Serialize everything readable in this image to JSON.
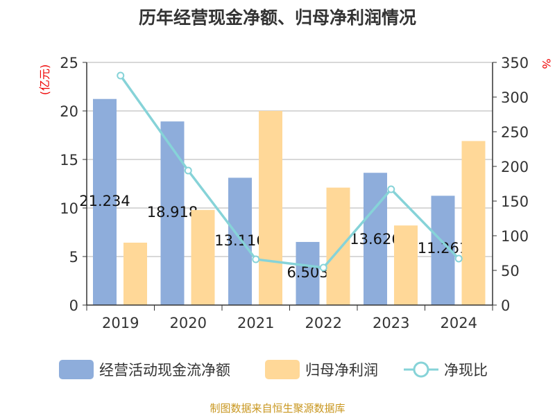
{
  "title": "历年经营现金净额、归母净利润情况",
  "source": "制图数据来自恒生聚源数据库",
  "chart_data": {
    "type": "bar",
    "title": "历年经营现金净额、归母净利润情况",
    "categories": [
      "2019",
      "2020",
      "2021",
      "2022",
      "2023",
      "2024"
    ],
    "ylabel": "(亿元)",
    "y2label": "%",
    "ylim": [
      0,
      25
    ],
    "y2lim": [
      0,
      350
    ],
    "yticks": [
      "0",
      "5",
      "10",
      "15",
      "20",
      "25"
    ],
    "y2ticks": [
      "0",
      "50",
      "100",
      "150",
      "200",
      "250",
      "300",
      "350"
    ],
    "grid": true,
    "legend": "bottom",
    "series": [
      {
        "name": "经营活动现金流净额",
        "type": "bar",
        "color": "#8eaddb",
        "values": [
          21.234,
          18.918,
          13.116,
          6.503,
          13.626,
          11.261
        ],
        "labels": [
          "21.234",
          "18.918",
          "13.116",
          "6.503",
          "13.626",
          "11.261"
        ]
      },
      {
        "name": "归母净利润",
        "type": "bar",
        "color": "#ffd898",
        "values": [
          6.43,
          9.8,
          20.0,
          12.1,
          8.2,
          16.9
        ]
      },
      {
        "name": "净现比",
        "type": "line",
        "axis": "right",
        "color": "#86d3d8",
        "values": [
          331,
          194,
          66,
          54,
          167,
          67
        ]
      }
    ]
  }
}
